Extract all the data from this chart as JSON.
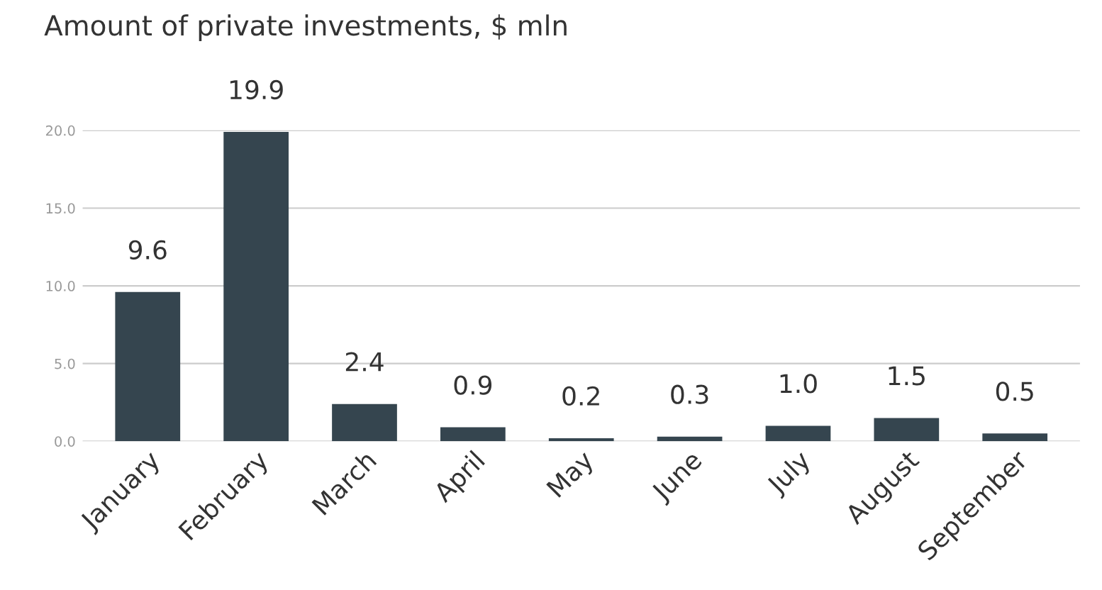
{
  "chart_data": {
    "type": "bar",
    "title": "Amount of private investments, $ mln",
    "categories": [
      "January",
      "February",
      "March",
      "April",
      "May",
      "June",
      "July",
      "August",
      "September"
    ],
    "values": [
      9.6,
      19.9,
      2.4,
      0.9,
      0.2,
      0.3,
      1.0,
      1.5,
      0.5
    ],
    "color": "#35454f",
    "ylim": [
      0,
      20
    ],
    "value_labels": [
      "9.6",
      "19.9",
      "2.4",
      "0.9",
      "0.2",
      "0.3",
      "1.0",
      "1.5",
      "0.5"
    ],
    "yticks": [
      {
        "value": 0,
        "label": "0.0"
      },
      {
        "value": 5,
        "label": "5.0"
      },
      {
        "value": 10,
        "label": "10.0"
      },
      {
        "value": 15,
        "label": "15.0"
      },
      {
        "value": 20,
        "label": "20.0"
      }
    ],
    "grid": "y"
  }
}
